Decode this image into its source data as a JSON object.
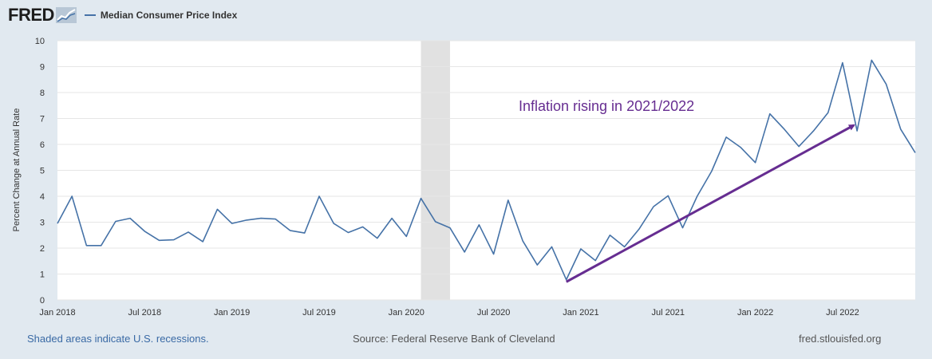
{
  "header": {
    "logo_text": "FRED",
    "legend_label": "Median Consumer Price Index",
    "legend_color": "#4572a7"
  },
  "footer": {
    "left": "Shaded areas indicate U.S. recessions.",
    "center": "Source: Federal Reserve Bank of Cleveland",
    "right": "fred.stlouisfed.org"
  },
  "chart_data": {
    "type": "line",
    "ylabel": "Percent Change at Annual Rate",
    "ylim": [
      0,
      10
    ],
    "yticks": [
      0,
      1,
      2,
      3,
      4,
      5,
      6,
      7,
      8,
      9,
      10
    ],
    "xlim": [
      "2018-01",
      "2022-12"
    ],
    "xticks": [
      {
        "date": "2018-01",
        "label": "Jan 2018"
      },
      {
        "date": "2018-07",
        "label": "Jul 2018"
      },
      {
        "date": "2019-01",
        "label": "Jan 2019"
      },
      {
        "date": "2019-07",
        "label": "Jul 2019"
      },
      {
        "date": "2020-01",
        "label": "Jan 2020"
      },
      {
        "date": "2020-07",
        "label": "Jul 2020"
      },
      {
        "date": "2021-01",
        "label": "Jan 2021"
      },
      {
        "date": "2021-07",
        "label": "Jul 2021"
      },
      {
        "date": "2022-01",
        "label": "Jan 2022"
      },
      {
        "date": "2022-07",
        "label": "Jul 2022"
      }
    ],
    "grid": true,
    "line_color": "#4572a7",
    "recessions": [
      {
        "start": "2020-02",
        "end": "2020-04"
      }
    ],
    "recession_color": "#e1e1e1",
    "series": [
      {
        "name": "Median Consumer Price Index",
        "x": [
          "2018-01",
          "2018-02",
          "2018-03",
          "2018-04",
          "2018-05",
          "2018-06",
          "2018-07",
          "2018-08",
          "2018-09",
          "2018-10",
          "2018-11",
          "2018-12",
          "2019-01",
          "2019-02",
          "2019-03",
          "2019-04",
          "2019-05",
          "2019-06",
          "2019-07",
          "2019-08",
          "2019-09",
          "2019-10",
          "2019-11",
          "2019-12",
          "2020-01",
          "2020-02",
          "2020-03",
          "2020-04",
          "2020-05",
          "2020-06",
          "2020-07",
          "2020-08",
          "2020-09",
          "2020-10",
          "2020-11",
          "2020-12",
          "2021-01",
          "2021-02",
          "2021-03",
          "2021-04",
          "2021-05",
          "2021-06",
          "2021-07",
          "2021-08",
          "2021-09",
          "2021-10",
          "2021-11",
          "2021-12",
          "2022-01",
          "2022-02",
          "2022-03",
          "2022-04",
          "2022-05",
          "2022-06",
          "2022-07",
          "2022-08",
          "2022-09",
          "2022-10",
          "2022-11",
          "2022-12"
        ],
        "y": [
          2.95,
          4.0,
          2.1,
          2.1,
          3.03,
          3.15,
          2.65,
          2.3,
          2.32,
          2.62,
          2.25,
          3.5,
          2.95,
          3.08,
          3.15,
          3.12,
          2.68,
          2.58,
          4.0,
          2.95,
          2.6,
          2.82,
          2.38,
          3.15,
          2.45,
          3.92,
          3.02,
          2.78,
          1.85,
          2.9,
          1.77,
          3.85,
          2.28,
          1.35,
          2.05,
          0.78,
          1.97,
          1.52,
          2.5,
          2.05,
          2.73,
          3.6,
          4.02,
          2.78,
          4.0,
          4.97,
          6.28,
          5.88,
          5.3,
          7.18,
          6.58,
          5.92,
          6.52,
          7.22,
          9.15,
          6.52,
          9.25,
          8.32,
          6.58,
          5.68
        ]
      }
    ],
    "annotations": [
      {
        "text": "Inflation rising in 2021/2022",
        "color": "#662d91",
        "arrow_from": {
          "x": "2020-12",
          "y": 0.7
        },
        "arrow_to": {
          "x": "2022-08",
          "y": 6.8
        }
      }
    ]
  }
}
